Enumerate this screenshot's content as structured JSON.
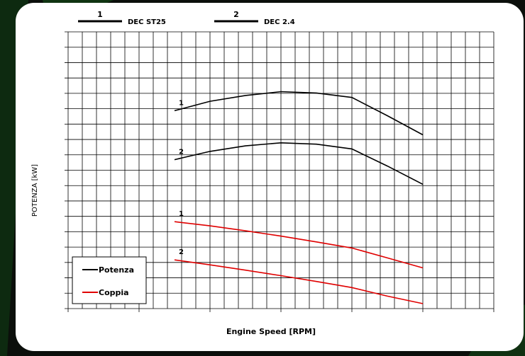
{
  "chart_data": {
    "type": "line",
    "title": "",
    "xlabel": "Engine Speed [RPM]",
    "ylabel": "POTENZA [kW]",
    "ylim": [
      0,
      100
    ],
    "grid": true,
    "x": [
      0,
      1,
      2,
      3,
      4,
      5,
      6,
      7
    ],
    "header_legend": [
      {
        "num": "1",
        "label": "DEC ST25"
      },
      {
        "num": "2",
        "label": "DEC 2.4"
      }
    ],
    "legend": {
      "position": "bottom-left",
      "items": [
        {
          "label": "Potenza",
          "color": "#000000"
        },
        {
          "label": "Coppia",
          "color": "#e00000"
        }
      ]
    },
    "series": [
      {
        "curve_label": "1",
        "type": "Potenza",
        "color": "#000000",
        "points": [
          [
            0,
            71.5
          ],
          [
            1,
            74.9
          ],
          [
            2,
            77
          ],
          [
            3,
            78.4
          ],
          [
            4,
            77.9
          ],
          [
            5,
            76.3
          ],
          [
            6,
            69.7
          ],
          [
            7,
            62.8
          ]
        ]
      },
      {
        "curve_label": "2",
        "type": "Potenza",
        "color": "#000000",
        "points": [
          [
            0,
            53.8
          ],
          [
            1,
            56.8
          ],
          [
            2,
            58.8
          ],
          [
            3,
            59.9
          ],
          [
            4,
            59.4
          ],
          [
            5,
            57.7
          ],
          [
            6,
            51.5
          ],
          [
            7,
            44.9
          ]
        ]
      },
      {
        "curve_label": "1",
        "type": "Coppia",
        "color": "#e00000",
        "points": [
          [
            0,
            31.4
          ],
          [
            1,
            29.9
          ],
          [
            2,
            28.1
          ],
          [
            3,
            26.2
          ],
          [
            4,
            24.1
          ],
          [
            5,
            21.9
          ],
          [
            6,
            18.3
          ],
          [
            7,
            14.7
          ]
        ]
      },
      {
        "curve_label": "2",
        "type": "Coppia",
        "color": "#e00000",
        "points": [
          [
            0,
            17.6
          ],
          [
            1,
            15.8
          ],
          [
            2,
            13.9
          ],
          [
            3,
            11.9
          ],
          [
            4,
            9.8
          ],
          [
            5,
            7.6
          ],
          [
            6,
            4.5
          ],
          [
            7,
            1.8
          ]
        ]
      }
    ]
  }
}
